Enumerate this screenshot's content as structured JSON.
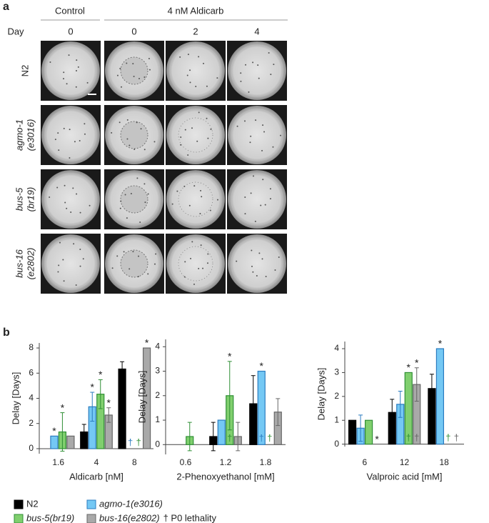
{
  "panel_a": {
    "label": "a",
    "groups": [
      "Control",
      "4 nM Aldicarb"
    ],
    "day_label": "Day",
    "days": [
      0,
      0,
      2,
      4
    ],
    "rows": [
      {
        "lines": [
          "N2"
        ],
        "italic": false
      },
      {
        "lines": [
          "agmo-1",
          "(e3016)"
        ],
        "italic": true
      },
      {
        "lines": [
          "bus-5",
          "(br19)"
        ],
        "italic": true
      },
      {
        "lines": [
          "bus-16",
          "(e2802)"
        ],
        "italic": true
      }
    ]
  },
  "panel_b": {
    "label": "b"
  },
  "legend": {
    "entries": [
      {
        "name": "N2",
        "color": "#000000",
        "stroke": "#000000",
        "italic": false
      },
      {
        "name": "agmo-1(e3016)",
        "color": "#74c8f4",
        "stroke": "#2b7cc0",
        "italic": true
      },
      {
        "name": "bus-5(br19)",
        "color": "#80cf6e",
        "stroke": "#2f8f35",
        "italic": true
      },
      {
        "name": "bus-16(e2802)",
        "color": "#a9a9a9",
        "stroke": "#666666",
        "italic": true
      }
    ],
    "note": "† P0 lethality"
  },
  "chart_data": [
    {
      "type": "bar",
      "ylabel": "Delay [Days]",
      "xlabel": "Aldicarb [nM]",
      "categories": [
        1.6,
        4,
        8
      ],
      "ylim": [
        -0.4,
        8.4
      ],
      "yticks": [
        0,
        2,
        4,
        6,
        8
      ],
      "series": [
        {
          "values": [
            null,
            1.33,
            6.33
          ],
          "errors": [
            null,
            0.6,
            0.58
          ],
          "stars": [
            null,
            null,
            null
          ],
          "daggers": [
            null,
            null,
            null
          ]
        },
        {
          "values": [
            1,
            3.33,
            null
          ],
          "errors": [
            null,
            1.15,
            null
          ],
          "stars": [
            "*",
            "*",
            null
          ],
          "daggers": [
            null,
            null,
            "†"
          ]
        },
        {
          "values": [
            1.33,
            4.33,
            null
          ],
          "errors": [
            1.53,
            1.15,
            null
          ],
          "stars": [
            "*",
            "*",
            null
          ],
          "daggers": [
            null,
            null,
            "†"
          ]
        },
        {
          "values": [
            1,
            2.67,
            8
          ],
          "errors": [
            null,
            0.58,
            null
          ],
          "stars": [
            null,
            "*",
            "*"
          ],
          "daggers": [
            null,
            null,
            null
          ]
        }
      ]
    },
    {
      "type": "bar",
      "ylabel": "Delay [Days]",
      "xlabel": "2-Phenoxyethanol [mM]",
      "categories": [
        0.6,
        1.2,
        1.8
      ],
      "ylim": [
        -0.4,
        4.3
      ],
      "yticks": [
        0,
        1,
        2,
        3,
        4
      ],
      "series": [
        {
          "values": [
            null,
            0.33,
            1.67
          ],
          "errors": [
            null,
            0.58,
            1.15
          ],
          "stars": [
            null,
            null,
            null
          ],
          "daggers": [
            null,
            null,
            null
          ]
        },
        {
          "values": [
            null,
            1,
            3
          ],
          "errors": [
            null,
            null,
            null
          ],
          "stars": [
            null,
            null,
            "*"
          ],
          "daggers": [
            null,
            null,
            "†"
          ]
        },
        {
          "values": [
            0.33,
            2,
            null
          ],
          "errors": [
            0.58,
            1.4,
            null
          ],
          "stars": [
            null,
            "*",
            null
          ],
          "daggers": [
            null,
            "†",
            "†"
          ]
        },
        {
          "values": [
            null,
            0.33,
            1.33
          ],
          "errors": [
            null,
            0.58,
            0.55
          ],
          "stars": [
            null,
            null,
            null
          ],
          "daggers": [
            null,
            null,
            null
          ]
        }
      ]
    },
    {
      "type": "bar",
      "ylabel": "Delay [Days]",
      "xlabel": "Valproic acid  [mM]",
      "categories": [
        6,
        12,
        18
      ],
      "ylim": [
        -0.1,
        4.3
      ],
      "yticks": [
        0,
        1,
        2,
        3,
        4
      ],
      "series": [
        {
          "values": [
            1,
            1.33,
            2.33
          ],
          "errors": [
            null,
            0.55,
            0.6
          ],
          "stars": [
            null,
            null,
            null
          ],
          "daggers": [
            null,
            null,
            "†"
          ]
        },
        {
          "values": [
            0.67,
            1.67,
            4
          ],
          "errors": [
            0.55,
            0.55,
            null
          ],
          "stars": [
            null,
            null,
            "*"
          ],
          "daggers": [
            null,
            null,
            null
          ]
        },
        {
          "values": [
            1,
            3,
            null
          ],
          "errors": [
            null,
            null,
            null
          ],
          "stars": [
            null,
            "*",
            null
          ],
          "daggers": [
            null,
            "†",
            "†"
          ]
        },
        {
          "values": [
            null,
            2.5,
            null
          ],
          "errors": [
            null,
            0.7,
            null
          ],
          "stars": [
            "*",
            "*",
            null
          ],
          "daggers": [
            null,
            "†",
            "†"
          ]
        }
      ]
    }
  ]
}
